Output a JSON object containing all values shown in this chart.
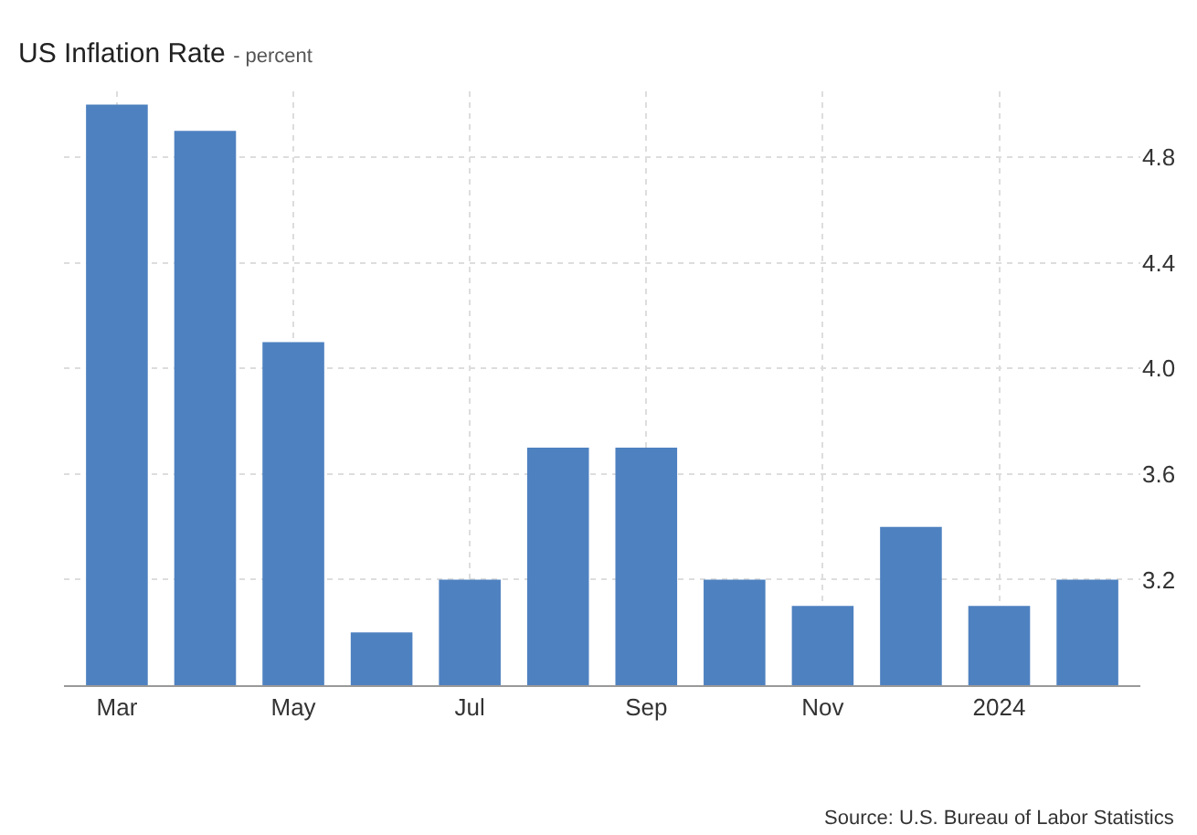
{
  "chart_data": {
    "type": "bar",
    "title": "US Inflation Rate",
    "subtitle": "- percent",
    "categories": [
      "Mar",
      null,
      "May",
      null,
      "Jul",
      null,
      "Sep",
      null,
      "Nov",
      null,
      "2024",
      null
    ],
    "values": [
      5.0,
      4.9,
      4.1,
      3.0,
      3.2,
      3.7,
      3.7,
      3.2,
      3.1,
      3.4,
      3.1,
      3.2
    ],
    "color": "#4e81c0",
    "ylim": [
      2.8,
      5.05
    ],
    "yticks": [
      3.2,
      3.6,
      {
        "value": 4,
        "label": "4.0"
      },
      4.4,
      4.8
    ],
    "grid": true,
    "annotations": [
      "Source: U.S. Bureau of Labor Statistics"
    ]
  }
}
